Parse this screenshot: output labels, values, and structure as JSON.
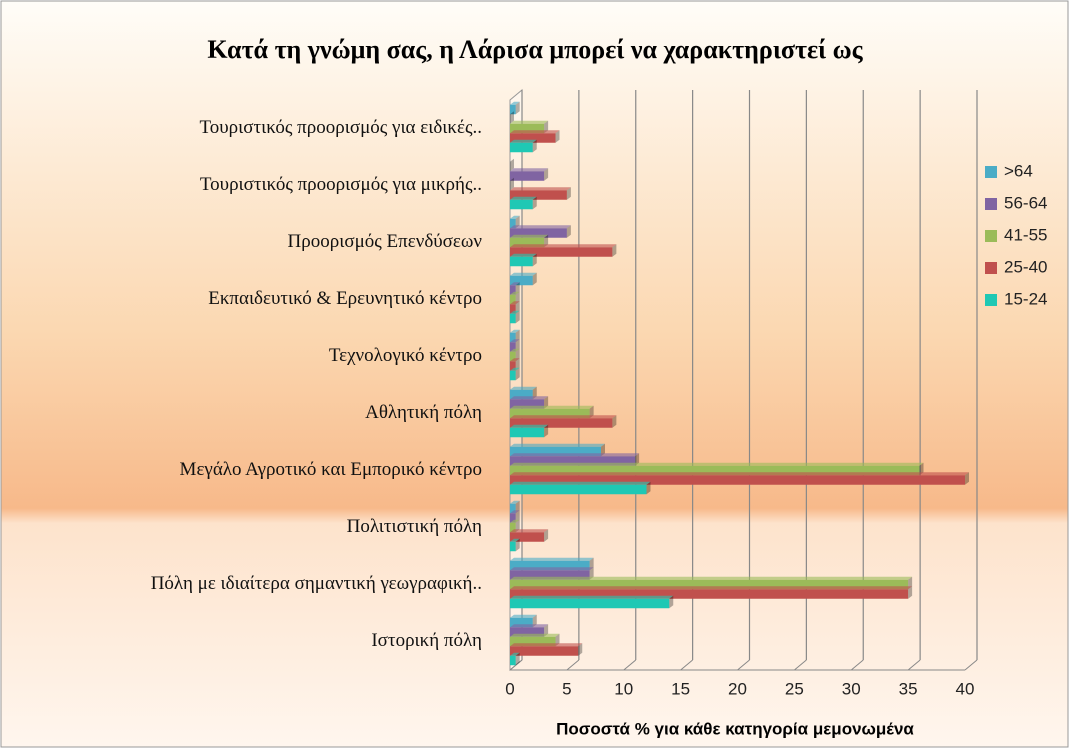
{
  "chart_data": {
    "type": "bar",
    "orientation": "horizontal",
    "title": "Κατά τη γνώμη σας, η Λάρισα μπορεί να χαρακτηριστεί ως",
    "x_label": "Ποσοστά % για κάθε κατηγορία μεμονωμένα",
    "categories": [
      "Τουριστικός προορισμός για ειδικές..",
      "Τουριστικός προορισμός για μικρής..",
      "Προορισμός Επενδύσεων",
      "Εκπαιδευτικό & Ερευνητικό κέντρο",
      "Τεχνολογικό κέντρο",
      "Αθλητική πόλη",
      "Μεγάλο Αγροτικό και Εμπορικό κέντρο",
      "Πολιτιστική πόλη",
      "Πόλη με ιδιαίτερα σημαντική γεωγραφική..",
      "Ιστορική πόλη"
    ],
    "series": [
      {
        "name": ">64",
        "color": "#4bacc6",
        "values": [
          0.5,
          0,
          0.5,
          2,
          0.5,
          2,
          8,
          0.5,
          7,
          2
        ]
      },
      {
        "name": "56-64",
        "color": "#8064a2",
        "values": [
          0,
          3,
          5,
          0.5,
          0.5,
          3,
          11,
          0.5,
          7,
          3
        ]
      },
      {
        "name": "41-55",
        "color": "#9bbb59",
        "values": [
          3,
          0,
          3,
          0.5,
          0.5,
          7,
          36,
          0.5,
          35,
          4
        ]
      },
      {
        "name": "25-40",
        "color": "#c0504d",
        "values": [
          4,
          5,
          9,
          0.5,
          0.5,
          9,
          40,
          3,
          35,
          6
        ]
      },
      {
        "name": "15-24",
        "color": "#1fc8b4",
        "values": [
          2,
          2,
          2,
          0.5,
          0.5,
          3,
          12,
          0.5,
          14,
          0.5
        ]
      }
    ],
    "xlim": [
      0,
      40
    ],
    "xticks": [
      0,
      5,
      10,
      15,
      20,
      25,
      30,
      35,
      40
    ],
    "grid": true,
    "legend": "right"
  }
}
